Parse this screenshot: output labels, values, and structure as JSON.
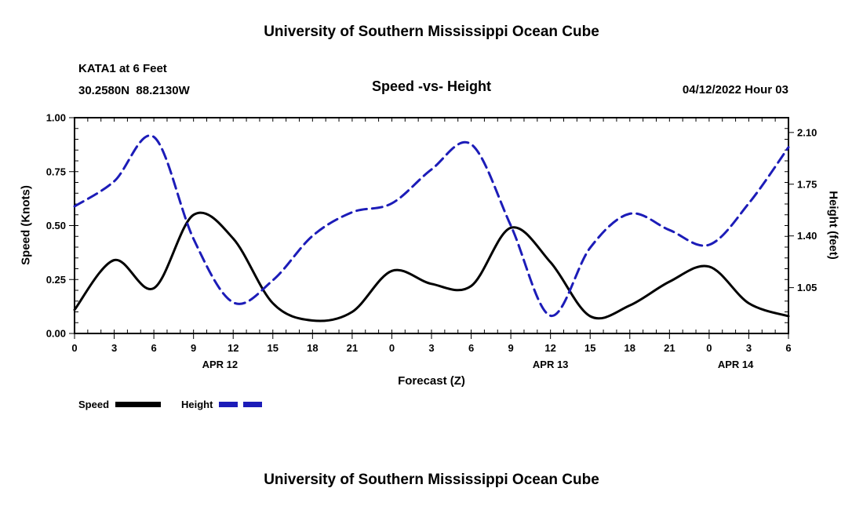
{
  "page": {
    "background": "#ffffff",
    "top_title": "University of Southern Mississippi Ocean Cube",
    "bottom_title": "University of Southern Mississippi Ocean Cube"
  },
  "header": {
    "station": "KATA1 at 6 Feet",
    "coordinates": "30.2580N  88.2130W",
    "chart_title": "Speed -vs- Height",
    "datetime": "04/12/2022 Hour 03"
  },
  "axes": {
    "left_label": "Speed (Knots)",
    "right_label": "Height (feet)",
    "x_label": "Forecast (Z)",
    "left_tick_labels": [
      "1.00",
      "0.75",
      "0.50",
      "0.25",
      "0.00"
    ],
    "left_tick_values": [
      1.0,
      0.75,
      0.5,
      0.25,
      0.0
    ],
    "left_range": [
      0.0,
      1.0
    ],
    "right_tick_labels": [
      "2.10",
      "1.75",
      "1.40",
      "1.05"
    ],
    "right_tick_values": [
      2.1,
      1.75,
      1.4,
      1.05
    ],
    "right_range": [
      0.74,
      2.2
    ],
    "x_tick_hours": [
      0,
      3,
      6,
      9,
      12,
      15,
      18,
      21,
      24,
      27,
      30,
      33,
      36,
      39,
      42,
      45,
      48,
      51,
      54
    ],
    "x_tick_labels": [
      "0",
      "3",
      "6",
      "9",
      "12",
      "15",
      "18",
      "21",
      "0",
      "3",
      "6",
      "9",
      "12",
      "15",
      "18",
      "21",
      "0",
      "3",
      "6"
    ],
    "date_labels": [
      {
        "label": "APR 12",
        "hour": 11
      },
      {
        "label": "APR 13",
        "hour": 36
      },
      {
        "label": "APR 14",
        "hour": 50
      }
    ]
  },
  "legend": [
    {
      "label": "Speed",
      "color": "#000000",
      "dashed": false
    },
    {
      "label": "Height",
      "color": "#1c1cb8",
      "dashed": true
    }
  ],
  "chart_data": {
    "type": "line",
    "title": "Speed -vs- Height",
    "station": "KATA1 at 6 Feet",
    "location": "30.2580N 88.2130W",
    "run": "04/12/2022 Hour 03",
    "xlabel": "Forecast (Z)",
    "x_hours": [
      0,
      3,
      6,
      9,
      12,
      15,
      18,
      21,
      24,
      27,
      30,
      33,
      36,
      39,
      42,
      45,
      48,
      51,
      54
    ],
    "x_tick_labels": [
      "0",
      "3",
      "6",
      "9",
      "12",
      "15",
      "18",
      "21",
      "0",
      "3",
      "6",
      "9",
      "12",
      "15",
      "18",
      "21",
      "0",
      "3",
      "6"
    ],
    "x_dates": [
      "APR 12",
      "APR 13",
      "APR 14"
    ],
    "grid": false,
    "legend_position": "bottom-left",
    "series": [
      {
        "name": "Speed",
        "axis": "left",
        "units": "Knots",
        "ylabel": "Speed (Knots)",
        "ylim": [
          0.0,
          1.0
        ],
        "color": "#000000",
        "style": "solid",
        "values": [
          0.11,
          0.34,
          0.21,
          0.55,
          0.44,
          0.14,
          0.06,
          0.1,
          0.29,
          0.23,
          0.22,
          0.49,
          0.33,
          0.08,
          0.13,
          0.24,
          0.31,
          0.14,
          0.08
        ]
      },
      {
        "name": "Height",
        "axis": "right",
        "units": "feet",
        "ylabel": "Height (feet)",
        "ylim": [
          0.74,
          2.2
        ],
        "color": "#1c1cb8",
        "style": "dashed",
        "values": [
          1.6,
          1.77,
          2.07,
          1.38,
          0.95,
          1.1,
          1.4,
          1.56,
          1.62,
          1.85,
          2.02,
          1.47,
          0.86,
          1.32,
          1.55,
          1.44,
          1.34,
          1.62,
          2.0
        ]
      }
    ]
  }
}
